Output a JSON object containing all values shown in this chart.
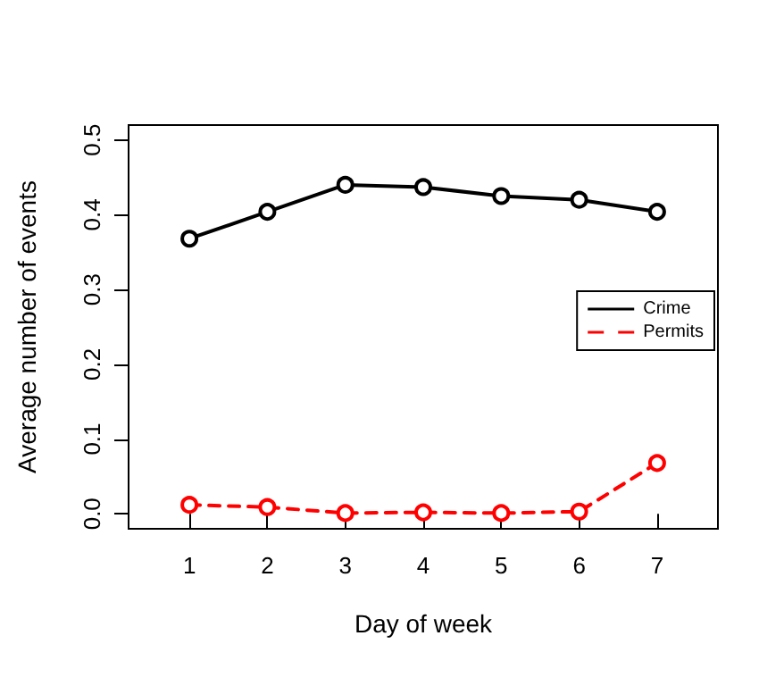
{
  "chart_data": {
    "type": "line",
    "xlabel": "Day of week",
    "ylabel": "Average number of events",
    "x": [
      1,
      2,
      3,
      4,
      5,
      6,
      7
    ],
    "series": [
      {
        "name": "Crime",
        "color": "#000000",
        "line_style": "solid",
        "values": [
          0.368,
          0.404,
          0.44,
          0.437,
          0.425,
          0.42,
          0.404
        ]
      },
      {
        "name": "Permits",
        "color": "#ff0000",
        "line_style": "dashed",
        "values": [
          0.012,
          0.009,
          0.001,
          0.002,
          0.001,
          0.003,
          0.068
        ]
      }
    ],
    "xlim": [
      0.22,
      7.78
    ],
    "xticks": [
      1,
      2,
      3,
      4,
      5,
      6,
      7
    ],
    "ylim": [
      -0.02,
      0.52
    ],
    "yticks": [
      {
        "value": 0,
        "label": "0.0"
      },
      {
        "value": 0.1,
        "label": "0.1"
      },
      {
        "value": 0.2,
        "label": "0.2"
      },
      {
        "value": 0.3,
        "label": "0.3"
      },
      {
        "value": 0.4,
        "label": "0.4"
      },
      {
        "value": 0.5,
        "label": "0.5"
      }
    ],
    "marker": "circle",
    "legend": "right",
    "grid": false
  }
}
